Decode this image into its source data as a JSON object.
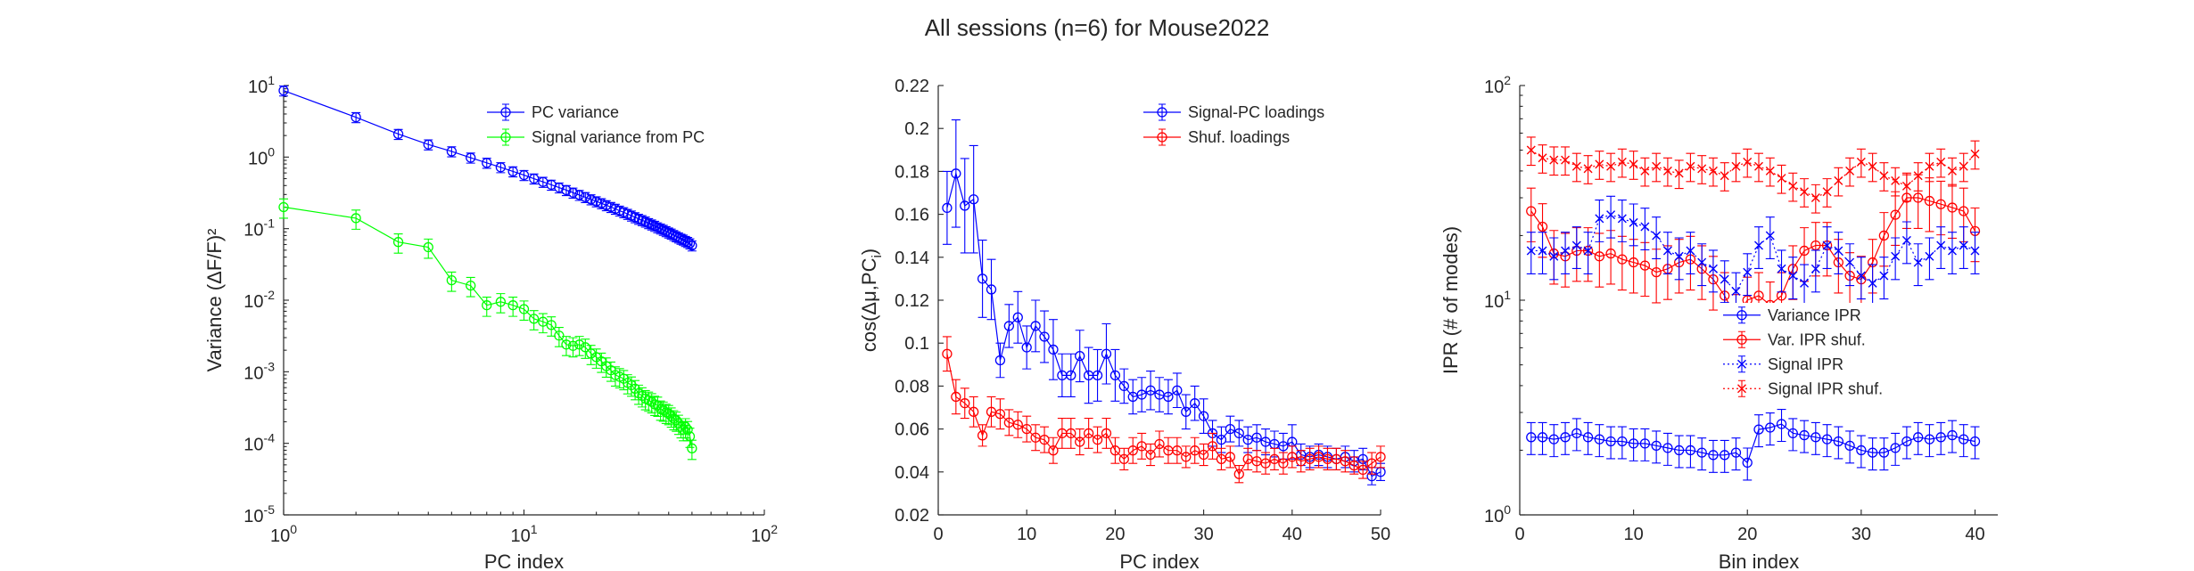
{
  "figure": {
    "title": "All sessions (n=6) for Mouse2022"
  },
  "colors": {
    "blue": "#0000ff",
    "red": "#ff0000",
    "green": "#00ff00",
    "axis": "#262626"
  },
  "chart_data": [
    {
      "type": "line",
      "xscale": "log",
      "yscale": "log",
      "xlim": [
        1,
        100
      ],
      "ylim": [
        1e-05,
        10
      ],
      "xlabel": "PC index",
      "ylabel": "Variance (ΔF/F)²",
      "x_ticks": [
        1,
        10,
        100
      ],
      "x_tick_labels": [
        {
          "base": "10",
          "exp": "0"
        },
        {
          "base": "10",
          "exp": "1"
        },
        {
          "base": "10",
          "exp": "2"
        }
      ],
      "y_ticks": [
        1e-05,
        0.0001,
        0.001,
        0.01,
        0.1,
        1,
        10
      ],
      "y_tick_labels": [
        {
          "base": "10",
          "exp": "-5"
        },
        {
          "base": "10",
          "exp": "-4"
        },
        {
          "base": "10",
          "exp": "-3"
        },
        {
          "base": "10",
          "exp": "-2"
        },
        {
          "base": "10",
          "exp": "-1"
        },
        {
          "base": "10",
          "exp": "0"
        },
        {
          "base": "10",
          "exp": "1"
        }
      ],
      "legend": {
        "position": "top-right"
      },
      "series": [
        {
          "name": "PC variance",
          "color": "blue",
          "marker": "circle",
          "line": "solid",
          "x": [
            1,
            2,
            3,
            4,
            5,
            6,
            7,
            8,
            9,
            10,
            11,
            12,
            13,
            14,
            15,
            16,
            17,
            18,
            19,
            20,
            21,
            22,
            23,
            24,
            25,
            26,
            27,
            28,
            29,
            30,
            31,
            32,
            33,
            34,
            35,
            36,
            37,
            38,
            39,
            40,
            41,
            42,
            43,
            44,
            45,
            46,
            47,
            48,
            49,
            50
          ],
          "y": [
            8.5,
            3.6,
            2.1,
            1.5,
            1.2,
            0.98,
            0.83,
            0.72,
            0.63,
            0.56,
            0.5,
            0.45,
            0.41,
            0.375,
            0.345,
            0.318,
            0.295,
            0.275,
            0.256,
            0.24,
            0.226,
            0.212,
            0.2,
            0.189,
            0.178,
            0.169,
            0.16,
            0.152,
            0.144,
            0.137,
            0.131,
            0.125,
            0.119,
            0.114,
            0.109,
            0.104,
            0.1,
            0.096,
            0.092,
            0.088,
            0.085,
            0.081,
            0.078,
            0.075,
            0.072,
            0.07,
            0.067,
            0.065,
            0.062,
            0.058
          ],
          "err_frac": 0.16
        },
        {
          "name": "Signal variance from PC",
          "color": "green",
          "marker": "circle",
          "line": "solid",
          "x": [
            1,
            2,
            3,
            4,
            5,
            6,
            7,
            8,
            9,
            10,
            11,
            12,
            13,
            14,
            15,
            16,
            17,
            18,
            19,
            20,
            21,
            22,
            23,
            24,
            25,
            26,
            27,
            28,
            29,
            30,
            31,
            32,
            33,
            34,
            35,
            36,
            37,
            38,
            39,
            40,
            41,
            42,
            43,
            44,
            45,
            46,
            47,
            48,
            49,
            50
          ],
          "y": [
            0.2,
            0.14,
            0.065,
            0.055,
            0.019,
            0.016,
            0.0085,
            0.0095,
            0.0085,
            0.0075,
            0.0055,
            0.005,
            0.0045,
            0.0032,
            0.0024,
            0.0023,
            0.0024,
            0.0022,
            0.0018,
            0.0016,
            0.0014,
            0.0012,
            0.00105,
            0.0009,
            0.00085,
            0.0008,
            0.0007,
            0.00065,
            0.00058,
            0.0005,
            0.00046,
            0.00042,
            0.0004,
            0.00038,
            0.00035,
            0.00034,
            0.0003,
            0.00029,
            0.00027,
            0.00026,
            0.00024,
            0.00022,
            0.00021,
            0.00019,
            0.00017,
            0.000155,
            0.00017,
            0.000155,
            0.000125,
            8.5e-05
          ],
          "err_frac": 0.3
        }
      ]
    },
    {
      "type": "line",
      "xlim": [
        0,
        50
      ],
      "ylim": [
        0.02,
        0.22
      ],
      "xlabel": "PC index",
      "ylabel_main": "cos(Δμ,PC",
      "ylabel_sub": "i",
      "ylabel_end": ")",
      "x_ticks": [
        0,
        10,
        20,
        30,
        40,
        50
      ],
      "y_ticks": [
        0.02,
        0.04,
        0.06,
        0.08,
        0.1,
        0.12,
        0.14,
        0.16,
        0.18,
        0.2,
        0.22
      ],
      "y_tick_labels": [
        "0.02",
        "0.04",
        "0.06",
        "0.08",
        "0.1",
        "0.12",
        "0.14",
        "0.16",
        "0.18",
        "0.2",
        "0.22"
      ],
      "legend": {
        "position": "top-right"
      },
      "series": [
        {
          "name": "Signal-PC loadings",
          "color": "blue",
          "marker": "circle",
          "line": "solid",
          "x": [
            1,
            2,
            3,
            4,
            5,
            6,
            7,
            8,
            9,
            10,
            11,
            12,
            13,
            14,
            15,
            16,
            17,
            18,
            19,
            20,
            21,
            22,
            23,
            24,
            25,
            26,
            27,
            28,
            29,
            30,
            31,
            32,
            33,
            34,
            35,
            36,
            37,
            38,
            39,
            40,
            41,
            42,
            43,
            44,
            45,
            46,
            47,
            48,
            49,
            50
          ],
          "y": [
            0.163,
            0.179,
            0.164,
            0.167,
            0.13,
            0.125,
            0.092,
            0.108,
            0.112,
            0.098,
            0.108,
            0.103,
            0.097,
            0.085,
            0.085,
            0.094,
            0.085,
            0.085,
            0.095,
            0.085,
            0.08,
            0.075,
            0.076,
            0.078,
            0.076,
            0.075,
            0.078,
            0.068,
            0.072,
            0.066,
            0.058,
            0.055,
            0.06,
            0.058,
            0.055,
            0.056,
            0.054,
            0.053,
            0.052,
            0.054,
            0.048,
            0.047,
            0.048,
            0.047,
            0.046,
            0.047,
            0.045,
            0.046,
            0.038,
            0.04
          ],
          "err": [
            0.017,
            0.025,
            0.022,
            0.025,
            0.018,
            0.014,
            0.008,
            0.01,
            0.012,
            0.01,
            0.012,
            0.012,
            0.014,
            0.01,
            0.01,
            0.012,
            0.013,
            0.012,
            0.014,
            0.012,
            0.008,
            0.008,
            0.008,
            0.009,
            0.008,
            0.008,
            0.008,
            0.008,
            0.008,
            0.008,
            0.006,
            0.006,
            0.006,
            0.006,
            0.006,
            0.006,
            0.006,
            0.006,
            0.006,
            0.008,
            0.005,
            0.005,
            0.005,
            0.005,
            0.005,
            0.005,
            0.005,
            0.005,
            0.004,
            0.004
          ]
        },
        {
          "name": "Shuf. loadings",
          "color": "red",
          "marker": "circle",
          "line": "solid",
          "x": [
            1,
            2,
            3,
            4,
            5,
            6,
            7,
            8,
            9,
            10,
            11,
            12,
            13,
            14,
            15,
            16,
            17,
            18,
            19,
            20,
            21,
            22,
            23,
            24,
            25,
            26,
            27,
            28,
            29,
            30,
            31,
            32,
            33,
            34,
            35,
            36,
            37,
            38,
            39,
            40,
            41,
            42,
            43,
            44,
            45,
            46,
            47,
            48,
            49,
            50
          ],
          "y": [
            0.095,
            0.075,
            0.072,
            0.068,
            0.057,
            0.068,
            0.067,
            0.063,
            0.062,
            0.06,
            0.056,
            0.055,
            0.05,
            0.058,
            0.058,
            0.054,
            0.058,
            0.055,
            0.058,
            0.05,
            0.046,
            0.05,
            0.052,
            0.048,
            0.053,
            0.05,
            0.05,
            0.047,
            0.05,
            0.048,
            0.052,
            0.046,
            0.047,
            0.039,
            0.046,
            0.045,
            0.044,
            0.046,
            0.044,
            0.047,
            0.045,
            0.046,
            0.047,
            0.046,
            0.046,
            0.045,
            0.043,
            0.041,
            0.044,
            0.047
          ],
          "err": [
            0.008,
            0.008,
            0.007,
            0.007,
            0.005,
            0.007,
            0.007,
            0.006,
            0.006,
            0.006,
            0.006,
            0.006,
            0.006,
            0.007,
            0.007,
            0.006,
            0.007,
            0.006,
            0.007,
            0.006,
            0.005,
            0.006,
            0.006,
            0.005,
            0.006,
            0.006,
            0.006,
            0.005,
            0.006,
            0.005,
            0.006,
            0.005,
            0.005,
            0.004,
            0.005,
            0.005,
            0.005,
            0.005,
            0.005,
            0.005,
            0.005,
            0.005,
            0.005,
            0.005,
            0.005,
            0.005,
            0.004,
            0.004,
            0.005,
            0.005
          ]
        }
      ]
    },
    {
      "type": "line",
      "yscale": "log",
      "xlim": [
        0,
        42
      ],
      "ylim": [
        1,
        100
      ],
      "xlabel": "Bin index",
      "ylabel": "IPR (# of modes)",
      "x_ticks": [
        0,
        10,
        20,
        30,
        40
      ],
      "y_ticks": [
        1,
        10,
        100
      ],
      "y_tick_labels": [
        {
          "base": "10",
          "exp": "0"
        },
        {
          "base": "10",
          "exp": "1"
        },
        {
          "base": "10",
          "exp": "2"
        }
      ],
      "legend": {
        "position": "right"
      },
      "series": [
        {
          "name": "Variance IPR",
          "color": "blue",
          "marker": "circle",
          "line": "solid",
          "x": [
            1,
            2,
            3,
            4,
            5,
            6,
            7,
            8,
            9,
            10,
            11,
            12,
            13,
            14,
            15,
            16,
            17,
            18,
            19,
            20,
            21,
            22,
            23,
            24,
            25,
            26,
            27,
            28,
            29,
            30,
            31,
            32,
            33,
            34,
            35,
            36,
            37,
            38,
            39,
            40
          ],
          "y": [
            2.3,
            2.3,
            2.25,
            2.3,
            2.4,
            2.3,
            2.25,
            2.2,
            2.2,
            2.15,
            2.15,
            2.1,
            2.05,
            2.0,
            2.0,
            1.95,
            1.9,
            1.9,
            1.95,
            1.75,
            2.5,
            2.55,
            2.65,
            2.4,
            2.35,
            2.3,
            2.25,
            2.2,
            2.1,
            2.0,
            1.95,
            1.95,
            2.05,
            2.2,
            2.3,
            2.25,
            2.3,
            2.35,
            2.25,
            2.2
          ],
          "err_frac": 0.17
        },
        {
          "name": "Var. IPR shuf.",
          "color": "red",
          "marker": "circle",
          "line": "solid",
          "x": [
            1,
            2,
            3,
            4,
            5,
            6,
            7,
            8,
            9,
            10,
            11,
            12,
            13,
            14,
            15,
            16,
            17,
            18,
            19,
            20,
            21,
            22,
            23,
            24,
            25,
            26,
            27,
            28,
            29,
            30,
            31,
            32,
            33,
            34,
            35,
            36,
            37,
            38,
            39,
            40
          ],
          "y": [
            26,
            22,
            16.5,
            16,
            17,
            17,
            16,
            16.5,
            15.5,
            15,
            14.5,
            13.5,
            14,
            15,
            15.5,
            14,
            12.5,
            10.5,
            8.3,
            10,
            10.5,
            9.5,
            10.5,
            14,
            17,
            18,
            18,
            15,
            13,
            12.5,
            15,
            20,
            25,
            30,
            30,
            29,
            28,
            27,
            26,
            21
          ],
          "err_frac": 0.28
        },
        {
          "name": "Signal IPR",
          "color": "blue",
          "marker": "x",
          "line": "dotted",
          "x": [
            1,
            2,
            3,
            4,
            5,
            6,
            7,
            8,
            9,
            10,
            11,
            12,
            13,
            14,
            15,
            16,
            17,
            18,
            19,
            20,
            21,
            22,
            23,
            24,
            25,
            26,
            27,
            28,
            29,
            30,
            31,
            32,
            33,
            34,
            35,
            36,
            37,
            38,
            39,
            40
          ],
          "y": [
            17,
            17,
            16,
            17,
            18,
            17,
            24,
            25,
            24,
            23,
            22,
            20,
            17,
            16,
            17,
            15,
            14,
            12.5,
            11,
            13.5,
            18,
            20,
            14,
            13,
            12,
            14,
            18,
            17,
            15,
            13,
            12,
            13,
            16,
            19,
            15,
            16,
            18,
            17,
            18,
            17
          ],
          "err_frac": 0.22
        },
        {
          "name": "Signal IPR shuf.",
          "color": "red",
          "marker": "x",
          "line": "dotted",
          "x": [
            1,
            2,
            3,
            4,
            5,
            6,
            7,
            8,
            9,
            10,
            11,
            12,
            13,
            14,
            15,
            16,
            17,
            18,
            19,
            20,
            21,
            22,
            23,
            24,
            25,
            26,
            27,
            28,
            29,
            30,
            31,
            32,
            33,
            34,
            35,
            36,
            37,
            38,
            39,
            40
          ],
          "y": [
            50,
            46,
            45,
            45,
            42,
            41,
            43,
            42,
            44,
            43,
            40,
            42,
            40,
            39,
            42,
            41,
            40,
            38,
            42,
            44,
            42,
            40,
            37,
            34,
            32,
            30,
            32,
            36,
            40,
            44,
            42,
            38,
            36,
            34,
            38,
            42,
            44,
            40,
            42,
            48
          ],
          "err_frac": 0.15
        }
      ]
    }
  ]
}
